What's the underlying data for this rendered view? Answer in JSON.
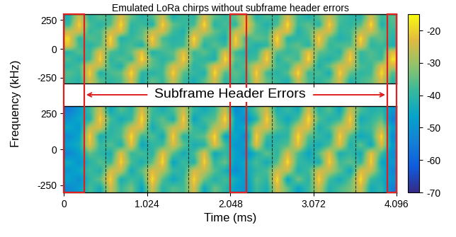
{
  "chart_data": {
    "type": "heatmap",
    "title": "Emulated LoRa chirps without subframe header errors",
    "x_label": "Time (ms)",
    "y_label": "Frequency (kHz)",
    "annotation": "Subframe Header Errors",
    "xlim": [
      0,
      4.096
    ],
    "xticks": [
      0,
      1.024,
      2.048,
      3.072,
      4.096
    ],
    "ylim": [
      -300,
      300
    ],
    "yticks": [
      -250,
      0,
      250
    ],
    "colorbar_range": [
      -70,
      -15
    ],
    "colorbar_ticks": [
      -70,
      -60,
      -50,
      -40,
      -30,
      -20
    ],
    "symbol_boundaries": [
      0.512,
      1.024,
      1.536,
      2.048,
      2.56,
      3.072,
      3.584
    ],
    "header_errors": [
      [
        0,
        0.25
      ],
      [
        2.048,
        2.25
      ],
      [
        3.98,
        4.096
      ]
    ],
    "panels": [
      {
        "cells": [
          [
            -38,
            -41,
            -24,
            -36,
            -40,
            -37,
            -23,
            -42,
            -35,
            -39,
            -25,
            -38,
            -43,
            -36,
            -24,
            -40,
            -37,
            -41,
            -23,
            -35,
            -39,
            -42,
            -25,
            -37,
            -40,
            -36,
            -24,
            -41,
            -38,
            -35,
            -23,
            -40
          ],
          [
            -36,
            -39,
            -19,
            -42,
            -37,
            -35,
            -18,
            -40,
            -41,
            -38,
            -19,
            -36,
            -39,
            -42,
            -18,
            -37,
            -35,
            -40,
            -19,
            -38,
            -41,
            -36,
            -18,
            -39,
            -37,
            -43,
            -19,
            -35,
            -40,
            -38,
            -18,
            -36
          ],
          [
            -40,
            -37,
            -24,
            -26,
            -38,
            -42,
            -25,
            -27,
            -36,
            -39,
            -24,
            -26,
            -41,
            -37,
            -23,
            -25,
            -39,
            -36,
            -24,
            -26,
            -38,
            -40,
            -25,
            -27,
            -42,
            -35,
            -24,
            -26,
            -37,
            -39,
            -23,
            -25
          ],
          [
            -37,
            -42,
            -38,
            -19,
            -40,
            -36,
            -39,
            -18,
            -35,
            -41,
            -37,
            -19,
            -38,
            -40,
            -42,
            -18,
            -36,
            -39,
            -37,
            -19,
            -41,
            -35,
            -38,
            -18,
            -39,
            -42,
            -36,
            -19,
            -40,
            -37,
            -38,
            -18
          ],
          [
            -41,
            -36,
            -39,
            -22,
            -37,
            -40,
            -35,
            -21,
            -42,
            -38,
            -36,
            -22,
            -39,
            -35,
            -41,
            -23,
            -38,
            -42,
            -40,
            -22,
            -36,
            -39,
            -37,
            -21,
            -35,
            -38,
            -41,
            -22,
            -39,
            -36,
            -40,
            -23
          ],
          [
            -22,
            -38,
            -41,
            -36,
            -21,
            -39,
            -37,
            -42,
            -23,
            -35,
            -40,
            -38,
            -22,
            -41,
            -36,
            -39,
            -21,
            -37,
            -42,
            -40,
            -22,
            -38,
            -35,
            -41,
            -23,
            -39,
            -37,
            -36,
            -22,
            -40,
            -38,
            -42
          ],
          [
            -19,
            -40,
            -36,
            -38,
            -18,
            -42,
            -39,
            -35,
            -19,
            -37,
            -41,
            -40,
            -18,
            -36,
            -38,
            -43,
            -19,
            -39,
            -35,
            -37,
            -18,
            -41,
            -40,
            -38,
            -19,
            -36,
            -42,
            -39,
            -18,
            -37,
            -35,
            -41
          ],
          [
            -26,
            -24,
            -39,
            -37,
            -25,
            -23,
            -41,
            -36,
            -26,
            -24,
            -38,
            -42,
            -27,
            -25,
            -35,
            -40,
            -26,
            -24,
            -37,
            -39,
            -25,
            -23,
            -42,
            -36,
            -26,
            -24,
            -40,
            -38,
            -27,
            -25,
            -36,
            -39
          ],
          [
            -39,
            -19,
            -37,
            -41,
            -36,
            -18,
            -40,
            -38,
            -42,
            -19,
            -35,
            -39,
            -38,
            -18,
            -41,
            -37,
            -40,
            -19,
            -36,
            -42,
            -37,
            -18,
            -39,
            -35,
            -41,
            -19,
            -38,
            -40,
            -36,
            -18,
            -42,
            -37
          ],
          [
            -42,
            -24,
            -40,
            -36,
            -38,
            -23,
            -35,
            -41,
            -37,
            -25,
            -42,
            -38,
            -40,
            -24,
            -36,
            -39,
            -35,
            -23,
            -41,
            -37,
            -39,
            -24,
            -38,
            -42,
            -36,
            -25,
            -37,
            -40,
            -41,
            -24,
            -39,
            -36
          ]
        ]
      },
      {
        "cells": [
          [
            -52,
            -48,
            -37,
            -44,
            -24,
            -39,
            -33,
            -46,
            -24,
            -41,
            -36,
            -38,
            -23,
            -45,
            -34,
            -40,
            -47,
            -50,
            -38,
            -43,
            -24,
            -35,
            -46,
            -39,
            -25,
            -42,
            -37,
            -33,
            -24,
            -44,
            -40,
            -55
          ],
          [
            -46,
            -51,
            -40,
            -35,
            -19,
            -43,
            -38,
            -41,
            -18,
            -36,
            -45,
            -39,
            -19,
            -34,
            -42,
            -37,
            -44,
            -49,
            -36,
            -40,
            -18,
            -46,
            -33,
            -41,
            -19,
            -38,
            -44,
            -36,
            -18,
            -39,
            -43,
            -50
          ],
          [
            -49,
            -45,
            -38,
            -42,
            -24,
            -26,
            -44,
            -35,
            -23,
            -27,
            -39,
            -41,
            -24,
            -26,
            -36,
            -43,
            -51,
            -46,
            -40,
            -37,
            -25,
            -26,
            -42,
            -38,
            -24,
            -27,
            -35,
            -45,
            -23,
            -26,
            -41,
            -53
          ],
          [
            -44,
            -50,
            -41,
            -36,
            -39,
            -19,
            -37,
            -43,
            -35,
            -18,
            -46,
            -38,
            -42,
            -19,
            -40,
            -34,
            -48,
            -45,
            -37,
            -44,
            -36,
            -18,
            -39,
            -41,
            -43,
            -19,
            -38,
            -35,
            -40,
            -19,
            -45,
            -49
          ],
          [
            -53,
            -47,
            -35,
            -40,
            -43,
            -22,
            -39,
            -37,
            -41,
            -21,
            -36,
            -44,
            -38,
            -22,
            -45,
            -39,
            -46,
            -52,
            -42,
            -35,
            -40,
            -23,
            -37,
            -46,
            -36,
            -22,
            -43,
            -39,
            -44,
            -21,
            -38,
            -51
          ],
          [
            -47,
            -44,
            -22,
            -39,
            -36,
            -42,
            -21,
            -45,
            -40,
            -38,
            -23,
            -35,
            -43,
            -41,
            -22,
            -37,
            -50,
            -47,
            -22,
            -43,
            -39,
            -36,
            -21,
            -40,
            -44,
            -37,
            -22,
            -42,
            -35,
            -45,
            -23,
            -48
          ],
          [
            -51,
            -46,
            -19,
            -43,
            -40,
            -37,
            -18,
            -39,
            -36,
            -44,
            -19,
            -41,
            -38,
            -35,
            -18,
            -46,
            -45,
            -53,
            -19,
            -38,
            -42,
            -40,
            -18,
            -36,
            -39,
            -43,
            -19,
            -37,
            -45,
            -41,
            -18,
            -52
          ],
          [
            -45,
            -49,
            -26,
            -24,
            -41,
            -38,
            -25,
            -23,
            -44,
            -36,
            -26,
            -24,
            -39,
            -42,
            -27,
            -25,
            -48,
            -44,
            -26,
            -24,
            -35,
            -40,
            -25,
            -23,
            -43,
            -37,
            -26,
            -24,
            -40,
            -38,
            -27,
            -47
          ],
          [
            -50,
            -45,
            -42,
            -19,
            -37,
            -44,
            -39,
            -18,
            -40,
            -35,
            -43,
            -19,
            -46,
            -38,
            -36,
            -18,
            -47,
            -51,
            -41,
            -19,
            -38,
            -45,
            -37,
            -18,
            -36,
            -42,
            -39,
            -19,
            -44,
            -40,
            -35,
            -54
          ],
          [
            -55,
            -48,
            -39,
            -24,
            -45,
            -36,
            -41,
            -23,
            -38,
            -43,
            -37,
            -25,
            -40,
            -44,
            -39,
            -24,
            -52,
            -46,
            -35,
            -24,
            -43,
            -39,
            -44,
            -23,
            -41,
            -36,
            -45,
            -25,
            -37,
            -42,
            -40,
            -49
          ]
        ]
      }
    ]
  }
}
